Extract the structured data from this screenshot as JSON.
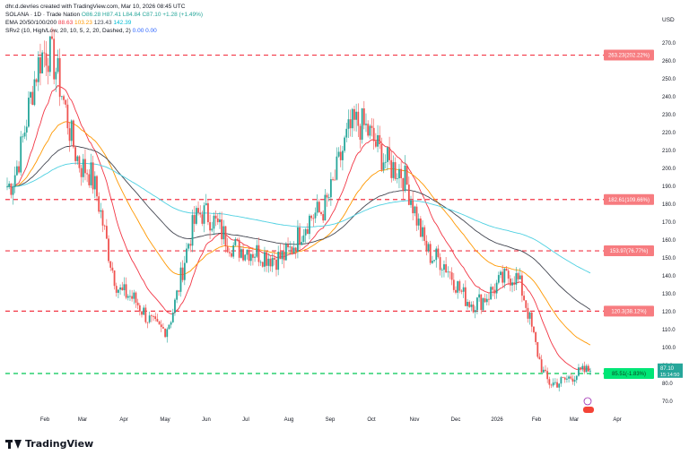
{
  "header": {
    "line1": "dhr.d.devries created with TradingView.com, Mar 10, 2026 08:45 UTC",
    "line2_label": "SOLANA · 1D · Trade Nation",
    "ohlc": "O86.28 H87.41 L84.84 C87.10 +1.28 (+1.49%)",
    "line3_label": "EMA 20/50/100/200",
    "ema_vals": [
      "88.63",
      "103.23",
      "123.43",
      "142.39"
    ],
    "line4_label": "SRv2 (10, High/Low, 20, 10, 5, 2, 20, Dashed, 2)",
    "sr_vals": [
      "0.00",
      "0.00"
    ]
  },
  "currency": "USD",
  "logo_text": "TradingView",
  "colors": {
    "up": "#26a69a",
    "down": "#ef5350",
    "ema20": "#f23645",
    "ema50": "#ff9800",
    "ema100": "#434651",
    "ema200": "#4dd0e1",
    "resistance": "#f23645",
    "support": "#00c853"
  },
  "chart_data": {
    "type": "line",
    "symbol": "SOLANA",
    "timeframe": "1D",
    "x_tick_labels": [
      "Feb",
      "Mar",
      "Apr",
      "May",
      "Jun",
      "Jul",
      "Aug",
      "Sep",
      "Oct",
      "Nov",
      "Dec",
      "2026",
      "Feb",
      "Mar",
      "Apr"
    ],
    "y_ticks": [
      70,
      80,
      90,
      100,
      110,
      120,
      130,
      140,
      150,
      160,
      170,
      180,
      190,
      200,
      210,
      220,
      230,
      240,
      250,
      260,
      270
    ],
    "ylim": [
      63,
      275
    ],
    "price_close_approx": [
      {
        "t": "Jan 2025",
        "v": 190
      },
      {
        "t": "mid Jan",
        "v": 265
      },
      {
        "t": "Feb",
        "v": 200
      },
      {
        "t": "Mar",
        "v": 130
      },
      {
        "t": "Apr",
        "v": 110
      },
      {
        "t": "May",
        "v": 175
      },
      {
        "t": "Jun",
        "v": 155
      },
      {
        "t": "Jul",
        "v": 150
      },
      {
        "t": "Aug",
        "v": 175
      },
      {
        "t": "Sep",
        "v": 225
      },
      {
        "t": "Oct",
        "v": 200
      },
      {
        "t": "Nov",
        "v": 150
      },
      {
        "t": "Dec",
        "v": 125
      },
      {
        "t": "Jan 2026",
        "v": 140
      },
      {
        "t": "Feb 2026",
        "v": 80
      },
      {
        "t": "Mar 2026",
        "v": 87.1
      }
    ],
    "series": [
      {
        "name": "EMA 20"
      },
      {
        "name": "EMA 50"
      },
      {
        "name": "EMA 100"
      },
      {
        "name": "EMA 200"
      }
    ],
    "levels": [
      {
        "value": 263.23,
        "label": "263.23(202.22%)",
        "kind": "resistance"
      },
      {
        "value": 182.61,
        "label": "182.61(109.66%)",
        "kind": "resistance"
      },
      {
        "value": 153.97,
        "label": "153.97(76.77%)",
        "kind": "resistance"
      },
      {
        "value": 120.3,
        "label": "120.3(38.12%)",
        "kind": "resistance"
      },
      {
        "value": 85.51,
        "label": "85.51(-1.83%)",
        "kind": "support"
      }
    ],
    "last_price": {
      "value": 87.1,
      "label": "87.10",
      "countdown": "15:14:50"
    },
    "grid": false
  }
}
